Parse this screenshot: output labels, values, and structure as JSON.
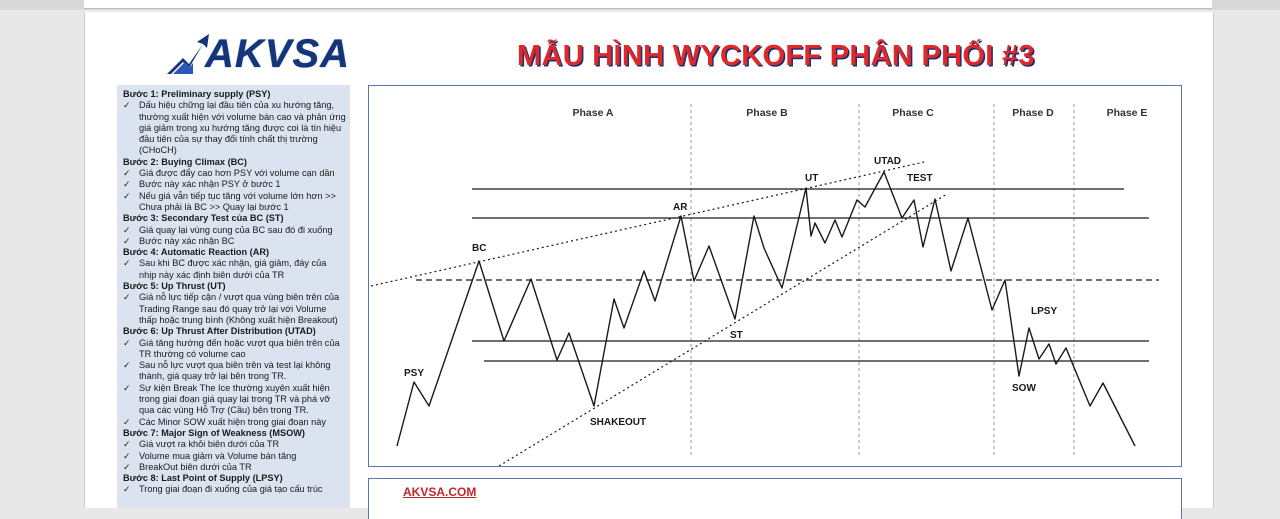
{
  "header": {
    "logo_text": "AKVSA",
    "title": "MẪU HÌNH WYCKOFF PHÂN PHỐI #3"
  },
  "steps": [
    {
      "title": "Bước 1: Preliminary supply (PSY)",
      "items": [
        "Dấu hiệu chững lại đầu tiên của xu hướng tăng, thường xuất hiện với volume bán cao và phản ứng giá giảm trong xu hướng tăng được coi là tín hiệu đầu tiên của sự thay đổi tính chất thị trường (CHoCH)"
      ]
    },
    {
      "title": "Bước 2: Buying Climax (BC)",
      "items": [
        "Giá được đẩy cao hơn PSY với volume cạn dần",
        "Bước này xác nhận PSY ở bước 1",
        "Nếu giá vẫn tiếp tục tăng với volume lớn hơn >> Chưa phải là BC >> Quay lại bước 1"
      ]
    },
    {
      "title": "Bước 3: Secondary Test của BC (ST)",
      "items": [
        "Giá quay lại vùng cung của BC sau đó đi xuống",
        "Bước này xác nhận BC"
      ]
    },
    {
      "title": "Bước 4: Automatic Reaction (AR)",
      "items": [
        "Sau khi BC được xác nhận, giá giảm, đáy của nhịp này xác định biên dưới của TR"
      ]
    },
    {
      "title": "Bước 5: Up Thrust (UT)",
      "items": [
        "Giá nỗ lực tiếp cận / vượt qua vùng biên trên của Trading Range sau đó quay trở lại với Volume thấp hoặc trung bình (Không xuất hiện Breakout)"
      ]
    },
    {
      "title": "Bước 6: Up Thrust After Distribution (UTAD)",
      "items": [
        "Giá tăng hướng đến hoặc vượt qua biên trên của TR thường có volume cao",
        "Sau nỗ lực vượt qua biên trên và test lại không thành, giá quay trở lại bên trong TR.",
        "Sự kiện Break The Ice thường xuyên xuất hiện trong giai đoạn giá quay lại trong TR và phá vỡ qua các vùng Hỗ Trợ (Cầu) bên trong TR.",
        "Các Minor SOW xuất hiện trong giai đoạn này"
      ]
    },
    {
      "title": "Bước 7: Major Sign of Weakness (MSOW)",
      "items": [
        "Giá vượt ra khỏi biên dưới của TR",
        "Volume mua giảm và Volume bán tăng",
        "BreakOut biên dưới của TR"
      ]
    },
    {
      "title": "Bước 8: Last Point of Supply (LPSY)",
      "items": [
        "Trong giai đoạn đi xuống của giá tạo cấu trúc"
      ]
    }
  ],
  "chart": {
    "phases": [
      "Phase A",
      "Phase B",
      "Phase C",
      "Phase D",
      "Phase E"
    ],
    "events": {
      "psy": "PSY",
      "bc": "BC",
      "ar": "AR",
      "shakeout": "SHAKEOUT",
      "st": "ST",
      "ut": "UT",
      "utad": "UTAD",
      "test": "TEST",
      "lpsy": "LPSY",
      "sow": "SOW"
    },
    "line_color": "#1a1a1a",
    "divider_color": "#9a9a9a"
  },
  "footer": {
    "link_text": "AKVSA.COM",
    "link_color": "#c0262b"
  },
  "colors": {
    "title_red": "#e02828",
    "title_shadow_blue": "#1b2f78",
    "logo_blue": "#14357a",
    "panel_bg": "#dbe3f1"
  }
}
